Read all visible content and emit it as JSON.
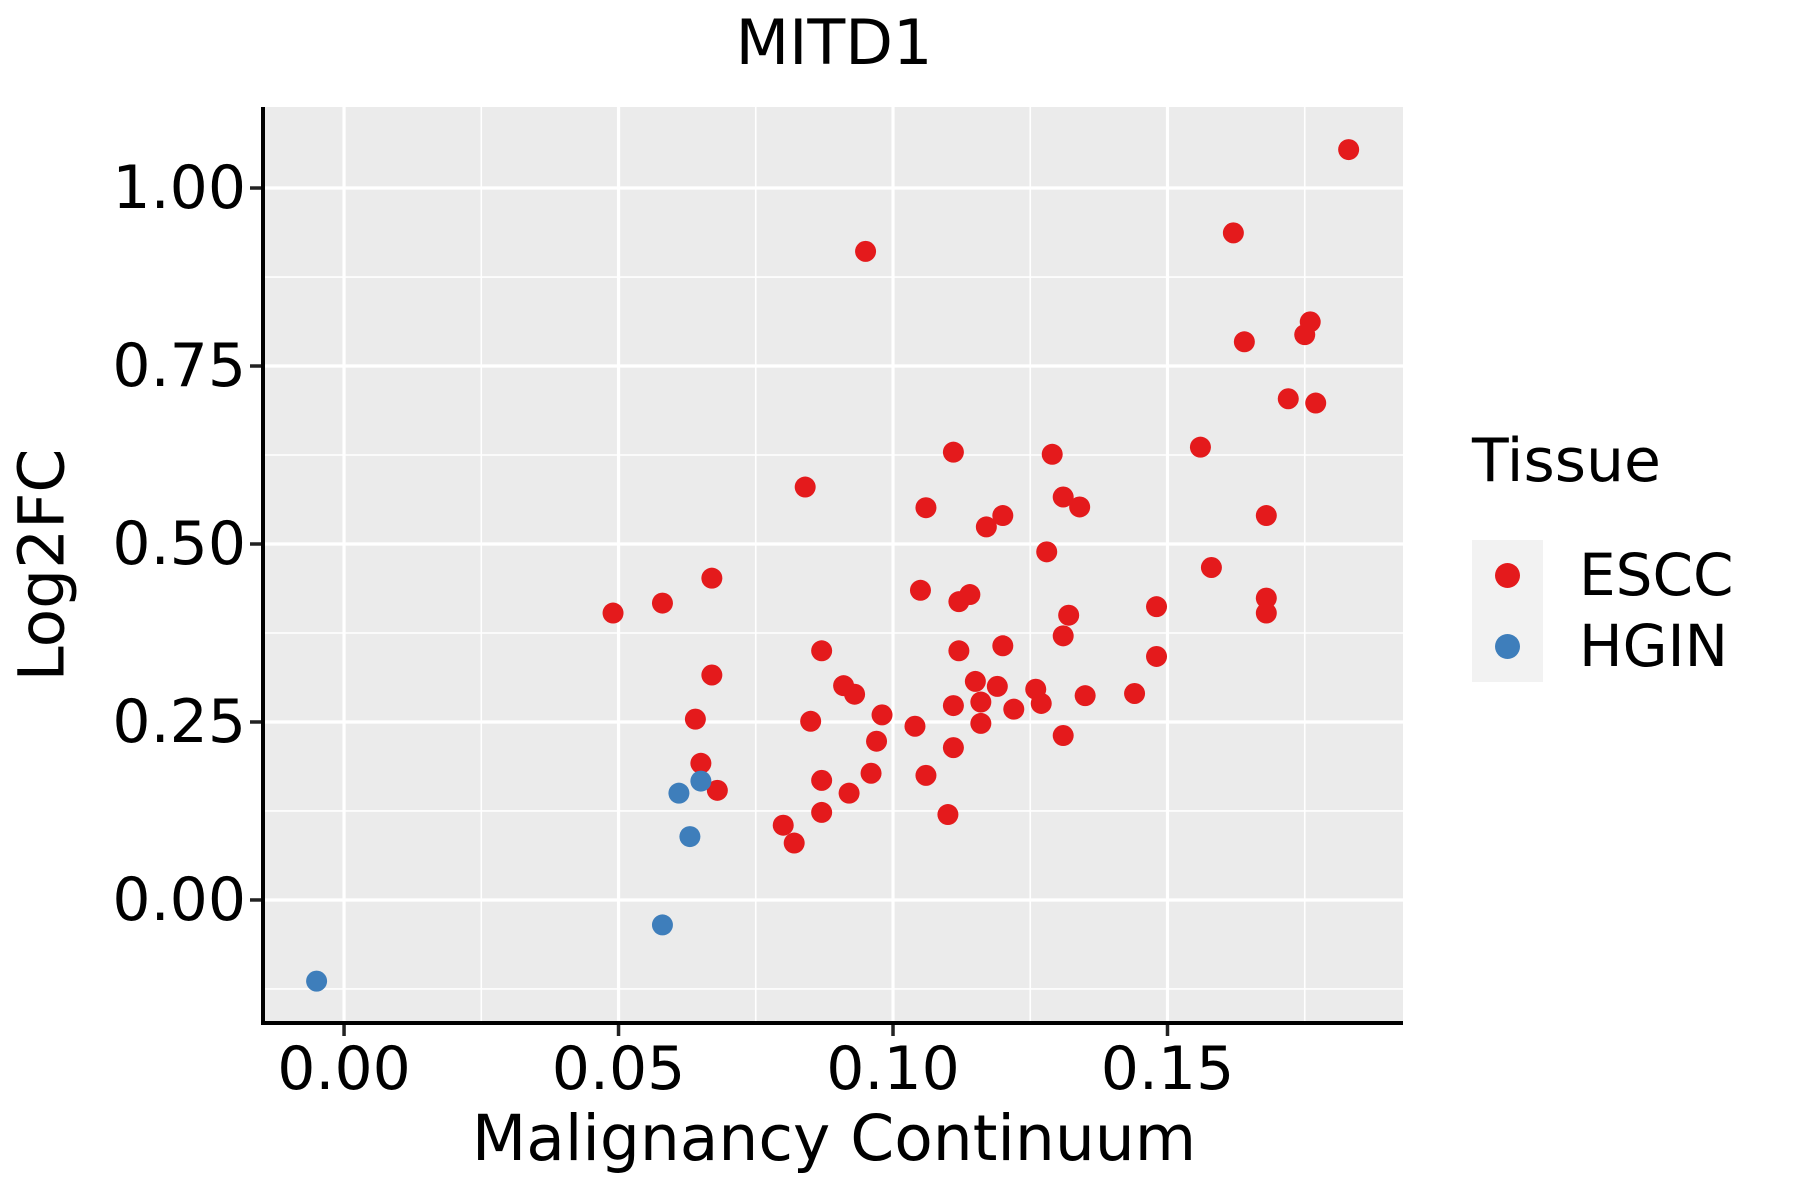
{
  "chart_data": {
    "type": "scatter",
    "title": "MITD1",
    "xlabel": "Malignancy Continuum",
    "ylabel": "Log2FC",
    "xlim": [
      -0.0144,
      0.1929
    ],
    "ylim": [
      -0.1728,
      1.1138
    ],
    "grid": {
      "major": true,
      "minor": true,
      "panel_bg": "#EBEBEB",
      "grid_color": "#FFFFFF"
    },
    "x_ticks": {
      "values": [
        0.0,
        0.05,
        0.1,
        0.15
      ],
      "labels": [
        "0.00",
        "0.05",
        "0.10",
        "0.15"
      ]
    },
    "y_ticks": {
      "values": [
        0.0,
        0.25,
        0.5,
        0.75,
        1.0
      ],
      "labels": [
        "0.00",
        "0.25",
        "0.50",
        "0.75",
        "1.00"
      ]
    },
    "legend": {
      "title": "Tissue",
      "position": "right",
      "key_bg": "#F2F2F2",
      "items": [
        {
          "label": "ESCC",
          "color": "#E41A1C"
        },
        {
          "label": "HGIN",
          "color": "#3E7EBB"
        }
      ]
    },
    "series": [
      {
        "name": "ESCC",
        "color": "#E41A1C",
        "points": [
          [
            0.049,
            0.403
          ],
          [
            0.058,
            0.417
          ],
          [
            0.064,
            0.254
          ],
          [
            0.065,
            0.192
          ],
          [
            0.067,
            0.452
          ],
          [
            0.067,
            0.316
          ],
          [
            0.068,
            0.154
          ],
          [
            0.08,
            0.105
          ],
          [
            0.082,
            0.08
          ],
          [
            0.084,
            0.58
          ],
          [
            0.085,
            0.251
          ],
          [
            0.087,
            0.35
          ],
          [
            0.087,
            0.168
          ],
          [
            0.087,
            0.123
          ],
          [
            0.091,
            0.301
          ],
          [
            0.092,
            0.15
          ],
          [
            0.093,
            0.289
          ],
          [
            0.095,
            0.911
          ],
          [
            0.096,
            0.178
          ],
          [
            0.097,
            0.223
          ],
          [
            0.098,
            0.26
          ],
          [
            0.104,
            0.244
          ],
          [
            0.105,
            0.435
          ],
          [
            0.106,
            0.551
          ],
          [
            0.106,
            0.175
          ],
          [
            0.11,
            0.12
          ],
          [
            0.111,
            0.629
          ],
          [
            0.111,
            0.273
          ],
          [
            0.111,
            0.214
          ],
          [
            0.112,
            0.419
          ],
          [
            0.112,
            0.35
          ],
          [
            0.114,
            0.429
          ],
          [
            0.115,
            0.307
          ],
          [
            0.116,
            0.278
          ],
          [
            0.116,
            0.248
          ],
          [
            0.117,
            0.524
          ],
          [
            0.119,
            0.3
          ],
          [
            0.12,
            0.54
          ],
          [
            0.12,
            0.357
          ],
          [
            0.122,
            0.268
          ],
          [
            0.126,
            0.296
          ],
          [
            0.127,
            0.276
          ],
          [
            0.128,
            0.489
          ],
          [
            0.129,
            0.626
          ],
          [
            0.131,
            0.566
          ],
          [
            0.131,
            0.371
          ],
          [
            0.131,
            0.231
          ],
          [
            0.132,
            0.4
          ],
          [
            0.134,
            0.552
          ],
          [
            0.135,
            0.287
          ],
          [
            0.144,
            0.29
          ],
          [
            0.148,
            0.412
          ],
          [
            0.148,
            0.342
          ],
          [
            0.156,
            0.636
          ],
          [
            0.158,
            0.467
          ],
          [
            0.162,
            0.937
          ],
          [
            0.164,
            0.784
          ],
          [
            0.168,
            0.54
          ],
          [
            0.168,
            0.424
          ],
          [
            0.168,
            0.403
          ],
          [
            0.172,
            0.704
          ],
          [
            0.175,
            0.794
          ],
          [
            0.176,
            0.812
          ],
          [
            0.177,
            0.698
          ],
          [
            0.183,
            1.054
          ]
        ]
      },
      {
        "name": "HGIN",
        "color": "#3E7EBB",
        "points": [
          [
            -0.005,
            -0.114
          ],
          [
            0.058,
            -0.035
          ],
          [
            0.063,
            0.089
          ],
          [
            0.061,
            0.15
          ],
          [
            0.065,
            0.167
          ]
        ]
      }
    ],
    "point_radius": 10.5,
    "axis_color": "#000000"
  }
}
